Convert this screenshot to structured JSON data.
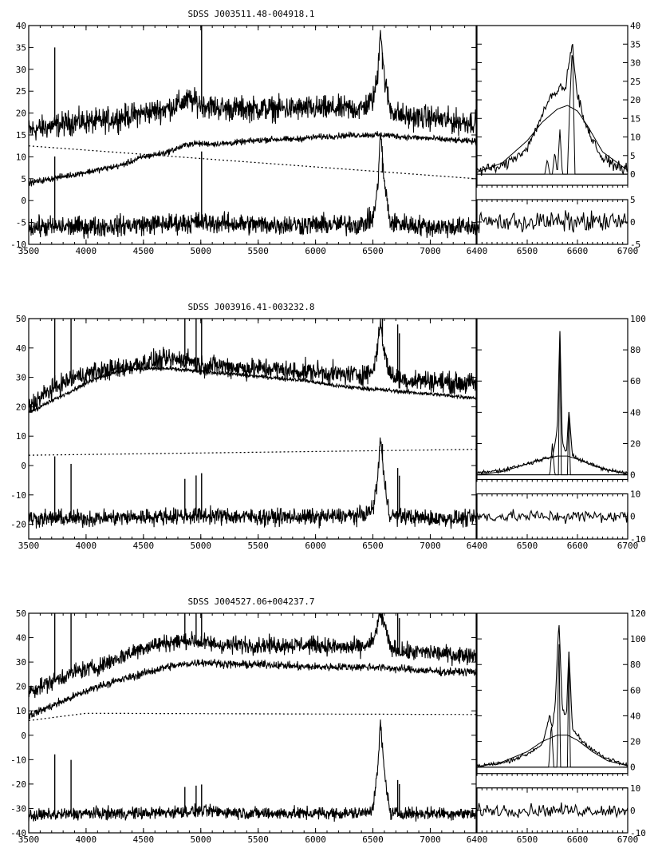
{
  "chart_data": [
    {
      "type": "line",
      "title": "SDSS J003511.48-004918.1",
      "main": {
        "xlim": [
          3500,
          7400
        ],
        "ylim": [
          -10,
          40
        ],
        "xticks": [
          "3500",
          "4000",
          "4500",
          "5000",
          "5500",
          "6000",
          "6500",
          "7000"
        ],
        "yticks": [
          "-10",
          "-5",
          "0",
          "5",
          "10",
          "15",
          "20",
          "25",
          "30",
          "35",
          "40"
        ],
        "series": [
          {
            "role": "observed",
            "x": [
              3500,
              3700,
              3900,
              4100,
              4300,
              4500,
              4700,
              4900,
              5000,
              5200,
              5400,
              5600,
              5800,
              6000,
              6200,
              6400,
              6500,
              6540,
              6565,
              6600,
              6650,
              6700,
              6800,
              7000,
              7200,
              7400
            ],
            "y": [
              16,
              17,
              18,
              18,
              19,
              20,
              21,
              23,
              22,
              21,
              21,
              21,
              21,
              21,
              21,
              21,
              23,
              28,
              40,
              28,
              21,
              20,
              19,
              19,
              18,
              18
            ],
            "noise": 2.4
          },
          {
            "role": "host-model",
            "x": [
              3500,
              3700,
              3900,
              4100,
              4300,
              4500,
              4700,
              4900,
              5000,
              5200,
              5400,
              5600,
              5800,
              6000,
              6200,
              6400,
              6600,
              6800,
              7000,
              7200,
              7400
            ],
            "y": [
              4,
              5,
              6,
              7,
              8,
              10,
              11,
              13,
              13,
              13,
              13.5,
              14,
              14,
              14.5,
              14.8,
              15,
              15,
              14.5,
              14.2,
              13.8,
              13.5
            ],
            "noise": 0.6
          },
          {
            "role": "power-law",
            "dashed": true,
            "x": [
              3500,
              7400
            ],
            "y": [
              12.5,
              5
            ],
            "noise": 0
          },
          {
            "role": "residual",
            "x": [
              3500,
              4000,
              4500,
              5000,
              5500,
              6000,
              6400,
              6500,
              6540,
              6565,
              6600,
              6650,
              7000,
              7400
            ],
            "y": [
              -6,
              -6,
              -5.5,
              -5,
              -5.5,
              -5.5,
              -5.5,
              -4,
              2,
              16,
              4,
              -5,
              -6,
              -6
            ],
            "noise": 2.0
          }
        ],
        "spikes": [
          {
            "x": 3727,
            "y": 35
          },
          {
            "x": 4861,
            "y": 24
          },
          {
            "x": 5007,
            "y": 40
          },
          {
            "x": 4959,
            "y": 25
          },
          {
            "x": 6300,
            "y": 23
          },
          {
            "x": 6583,
            "y": 30
          }
        ]
      },
      "zoom": {
        "xlim": [
          6400,
          6700
        ],
        "ylim": [
          -3,
          40
        ],
        "xticks": [
          "6400",
          "6500",
          "6600",
          "6700"
        ],
        "yticks": [
          "0",
          "5",
          "10",
          "15",
          "20",
          "25",
          "30",
          "35",
          "40"
        ],
        "series": [
          {
            "role": "observed",
            "x": [
              6400,
              6450,
              6500,
              6520,
              6540,
              6550,
              6560,
              6565,
              6575,
              6585,
              6590,
              6600,
              6620,
              6650,
              6700
            ],
            "y": [
              1,
              2,
              7,
              13,
              19,
              21,
              22,
              24,
              22,
              32,
              35,
              21,
              12,
              4,
              1
            ],
            "noise": 1.2
          },
          {
            "role": "broad",
            "x": [
              6400,
              6450,
              6500,
              6530,
              6560,
              6580,
              6600,
              6620,
              6650,
              6700
            ],
            "y": [
              0.5,
              3,
              9,
              14,
              17.5,
              18.5,
              17,
              13,
              6,
              1
            ],
            "noise": 0
          },
          {
            "role": "narrow",
            "x": [
              6400,
              6535,
              6540,
              6545,
              6550,
              6555,
              6560,
              6565,
              6570,
              6580,
              6585,
              6590,
              6595,
              6700
            ],
            "y": [
              0,
              0,
              4,
              0,
              0,
              6,
              0,
              12,
              0,
              0,
              20,
              35,
              0,
              0
            ],
            "noise": 0
          }
        ],
        "residual": {
          "ylim": [
            -5,
            5
          ],
          "yticks": [
            "-5",
            "0",
            "5"
          ],
          "noise": 2.0
        }
      }
    },
    {
      "type": "line",
      "title": "SDSS J003916.41-003232.8",
      "main": {
        "xlim": [
          3500,
          7400
        ],
        "ylim": [
          -25,
          50
        ],
        "xticks": [
          "3500",
          "4000",
          "4500",
          "5000",
          "5500",
          "6000",
          "6500",
          "7000"
        ],
        "yticks": [
          "-20",
          "-10",
          "0",
          "10",
          "20",
          "30",
          "40",
          "50"
        ],
        "series": [
          {
            "role": "observed",
            "x": [
              3500,
              3700,
              3900,
              4100,
              4300,
              4500,
              4700,
              4900,
              5000,
              5200,
              5400,
              5600,
              5800,
              6000,
              6200,
              6400,
              6500,
              6540,
              6565,
              6600,
              6650,
              6700,
              6800,
              7000,
              7200,
              7400
            ],
            "y": [
              20,
              26,
              30,
              32,
              33,
              35,
              36,
              36,
              34,
              34,
              33,
              33,
              32,
              32,
              31,
              31,
              32,
              40,
              50,
              38,
              31,
              30,
              29,
              29,
              28,
              28
            ],
            "noise": 3.0
          },
          {
            "role": "host-model",
            "x": [
              3500,
              3800,
              4100,
              4400,
              4700,
              5000,
              5300,
              5600,
              5900,
              6200,
              6500,
              6800,
              7100,
              7400
            ],
            "y": [
              18,
              24,
              30,
              33,
              33,
              32,
              31,
              30,
              29,
              27,
              26,
              25,
              24,
              23
            ],
            "noise": 0.6
          },
          {
            "role": "power-law",
            "dashed": true,
            "x": [
              3500,
              7400
            ],
            "y": [
              3.5,
              5.5
            ],
            "noise": 0
          },
          {
            "role": "residual",
            "x": [
              3500,
              4000,
              4500,
              5000,
              5500,
              6000,
              6400,
              6500,
              6540,
              6565,
              6600,
              6650,
              7000,
              7400
            ],
            "y": [
              -18,
              -18,
              -17.5,
              -17,
              -17.5,
              -17.5,
              -17,
              -15,
              -5,
              10,
              -6,
              -17,
              -18,
              -18
            ],
            "noise": 2.4
          }
        ],
        "spikes": [
          {
            "x": 3727,
            "y": 50
          },
          {
            "x": 3869,
            "y": 50
          },
          {
            "x": 4861,
            "y": 50
          },
          {
            "x": 4959,
            "y": 50
          },
          {
            "x": 5007,
            "y": 50
          },
          {
            "x": 6583,
            "y": 50
          },
          {
            "x": 6716,
            "y": 48
          },
          {
            "x": 6731,
            "y": 45
          }
        ]
      },
      "zoom": {
        "xlim": [
          6400,
          6700
        ],
        "ylim": [
          -3,
          100
        ],
        "xticks": [
          "6400",
          "6500",
          "6600",
          "6700"
        ],
        "yticks": [
          "0",
          "20",
          "40",
          "60",
          "80",
          "100"
        ],
        "series": [
          {
            "role": "observed",
            "x": [
              6400,
              6450,
              6500,
              6530,
              6550,
              6555,
              6560,
              6565,
              6570,
              6578,
              6583,
              6590,
              6610,
              6650,
              6700
            ],
            "y": [
              1,
              3,
              7,
              10,
              12,
              20,
              30,
              92,
              20,
              14,
              40,
              12,
              9,
              4,
              1
            ],
            "noise": 1.2
          },
          {
            "role": "broad",
            "x": [
              6400,
              6450,
              6500,
              6530,
              6560,
              6580,
              6600,
              6630,
              6660,
              6700
            ],
            "y": [
              0,
              2,
              7,
              10,
              12,
              12,
              10,
              6,
              3,
              0.5
            ],
            "noise": 0
          },
          {
            "role": "narrow",
            "x": [
              6400,
              6545,
              6550,
              6555,
              6558,
              6562,
              6565,
              6568,
              6572,
              6580,
              6583,
              6586,
              6590,
              6700
            ],
            "y": [
              0,
              0,
              20,
              0,
              0,
              0,
              92,
              0,
              0,
              0,
              40,
              0,
              0,
              0
            ],
            "noise": 0
          }
        ],
        "residual": {
          "ylim": [
            -10,
            10
          ],
          "yticks": [
            "-10",
            "0",
            "10"
          ],
          "noise": 2.4
        }
      }
    },
    {
      "type": "line",
      "title": "SDSS J004527.06+004237.7",
      "main": {
        "xlim": [
          3500,
          7400
        ],
        "ylim": [
          -40,
          50
        ],
        "xticks": [
          "3500",
          "4000",
          "4500",
          "5000",
          "5500",
          "6000",
          "6500",
          "7000"
        ],
        "yticks": [
          "-40",
          "-30",
          "-20",
          "-10",
          "0",
          "10",
          "20",
          "30",
          "40",
          "50"
        ],
        "series": [
          {
            "role": "observed",
            "x": [
              3500,
              3700,
              3900,
              4100,
              4300,
              4500,
              4700,
              4900,
              5000,
              5200,
              5400,
              5600,
              5800,
              6000,
              6200,
              6400,
              6500,
              6540,
              6565,
              6600,
              6650,
              6700,
              6800,
              7000,
              7200,
              7400
            ],
            "y": [
              18,
              22,
              26,
              28,
              32,
              36,
              38,
              39,
              38,
              37,
              37,
              37,
              37,
              37,
              36,
              36,
              38,
              45,
              50,
              45,
              36,
              35,
              34,
              34,
              33,
              33
            ],
            "noise": 3.0
          },
          {
            "role": "host-model",
            "x": [
              3500,
              3800,
              4100,
              4400,
              4700,
              5000,
              5300,
              5600,
              5900,
              6200,
              6500,
              6800,
              7100,
              7400
            ],
            "y": [
              8,
              14,
              20,
              24,
              28,
              30,
              29,
              29,
              28,
              28,
              28,
              27,
              26,
              26
            ],
            "noise": 1.4
          },
          {
            "role": "power-law",
            "dashed": true,
            "x": [
              3500,
              4000,
              7400
            ],
            "y": [
              6,
              9,
              8.5
            ],
            "noise": 0
          },
          {
            "role": "residual",
            "x": [
              3500,
              4000,
              4500,
              5000,
              5500,
              6000,
              6400,
              6500,
              6540,
              6565,
              6600,
              6650,
              7000,
              7400
            ],
            "y": [
              -33,
              -32,
              -32,
              -31,
              -32,
              -32,
              -32,
              -30,
              -15,
              5,
              -15,
              -32,
              -32,
              -32
            ],
            "noise": 2.2
          }
        ],
        "spikes": [
          {
            "x": 3727,
            "y": 50
          },
          {
            "x": 3869,
            "y": 50
          },
          {
            "x": 4861,
            "y": 50
          },
          {
            "x": 4959,
            "y": 50
          },
          {
            "x": 5007,
            "y": 50
          },
          {
            "x": 6583,
            "y": 50
          },
          {
            "x": 6716,
            "y": 50
          },
          {
            "x": 6731,
            "y": 48
          }
        ]
      },
      "zoom": {
        "xlim": [
          6400,
          6700
        ],
        "ylim": [
          -5,
          120
        ],
        "xticks": [
          "6400",
          "6500",
          "6600",
          "6700"
        ],
        "yticks": [
          "0",
          "20",
          "40",
          "60",
          "80",
          "100",
          "120"
        ],
        "series": [
          {
            "role": "observed",
            "x": [
              6400,
              6450,
              6500,
              6530,
              6545,
              6550,
              6556,
              6563,
              6570,
              6578,
              6583,
              6590,
              6610,
              6650,
              6700
            ],
            "y": [
              1,
              3,
              10,
              18,
              40,
              30,
              50,
              115,
              45,
              40,
              90,
              30,
              20,
              8,
              1
            ],
            "noise": 1.4
          },
          {
            "role": "broad",
            "x": [
              6400,
              6450,
              6500,
              6530,
              6560,
              6580,
              6600,
              6630,
              6660,
              6700
            ],
            "y": [
              0,
              4,
              12,
              20,
              25,
              25,
              21,
              12,
              5,
              1
            ],
            "noise": 0
          },
          {
            "role": "narrow",
            "x": [
              6400,
              6543,
              6548,
              6553,
              6558,
              6560,
              6563,
              6566,
              6570,
              6580,
              6583,
              6586,
              6590,
              6700
            ],
            "y": [
              0,
              0,
              35,
              0,
              0,
              0,
              115,
              0,
              0,
              0,
              90,
              0,
              0,
              0
            ],
            "noise": 0
          }
        ],
        "residual": {
          "ylim": [
            -10,
            10
          ],
          "yticks": [
            "-10",
            "0",
            "10"
          ],
          "noise": 2.4
        }
      }
    }
  ]
}
